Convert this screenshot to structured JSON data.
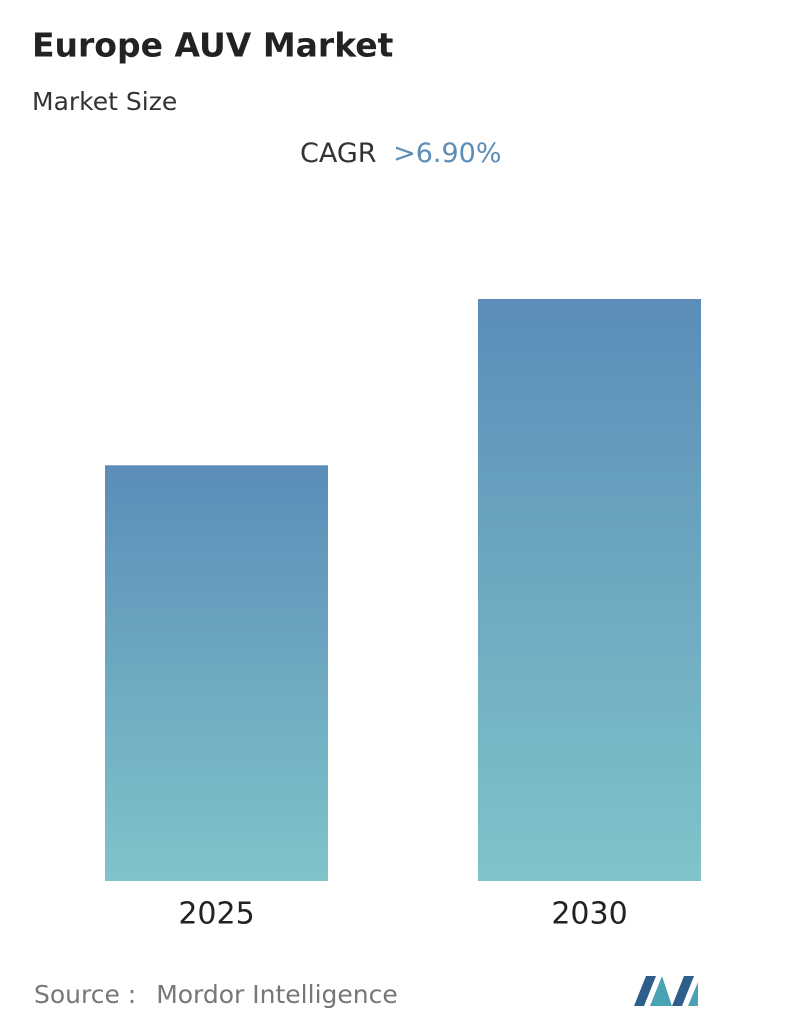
{
  "chart_data": {
    "type": "bar",
    "title": "Europe AUV Market",
    "subtitle": "Market Size",
    "cagr_label": "CAGR",
    "cagr_value": ">6.90%",
    "categories": [
      "2025",
      "2030"
    ],
    "values": [
      1,
      1.4
    ],
    "ylim": [
      0,
      1.4
    ],
    "color_top": "#5b8db8",
    "color_bottom": "#80c4ca",
    "source_label": "Source :",
    "source": "Mordor Intelligence"
  }
}
